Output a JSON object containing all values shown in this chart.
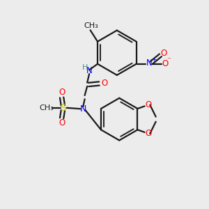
{
  "background_color": "#ececec",
  "figsize": [
    3.0,
    3.0
  ],
  "dpi": 100,
  "bond_color": "#1a1a1a",
  "bond_width": 1.6,
  "colors": {
    "N": "#0000ff",
    "O": "#ff0000",
    "S": "#cccc00",
    "H": "#4a8a8a",
    "C": "#1a1a1a"
  }
}
